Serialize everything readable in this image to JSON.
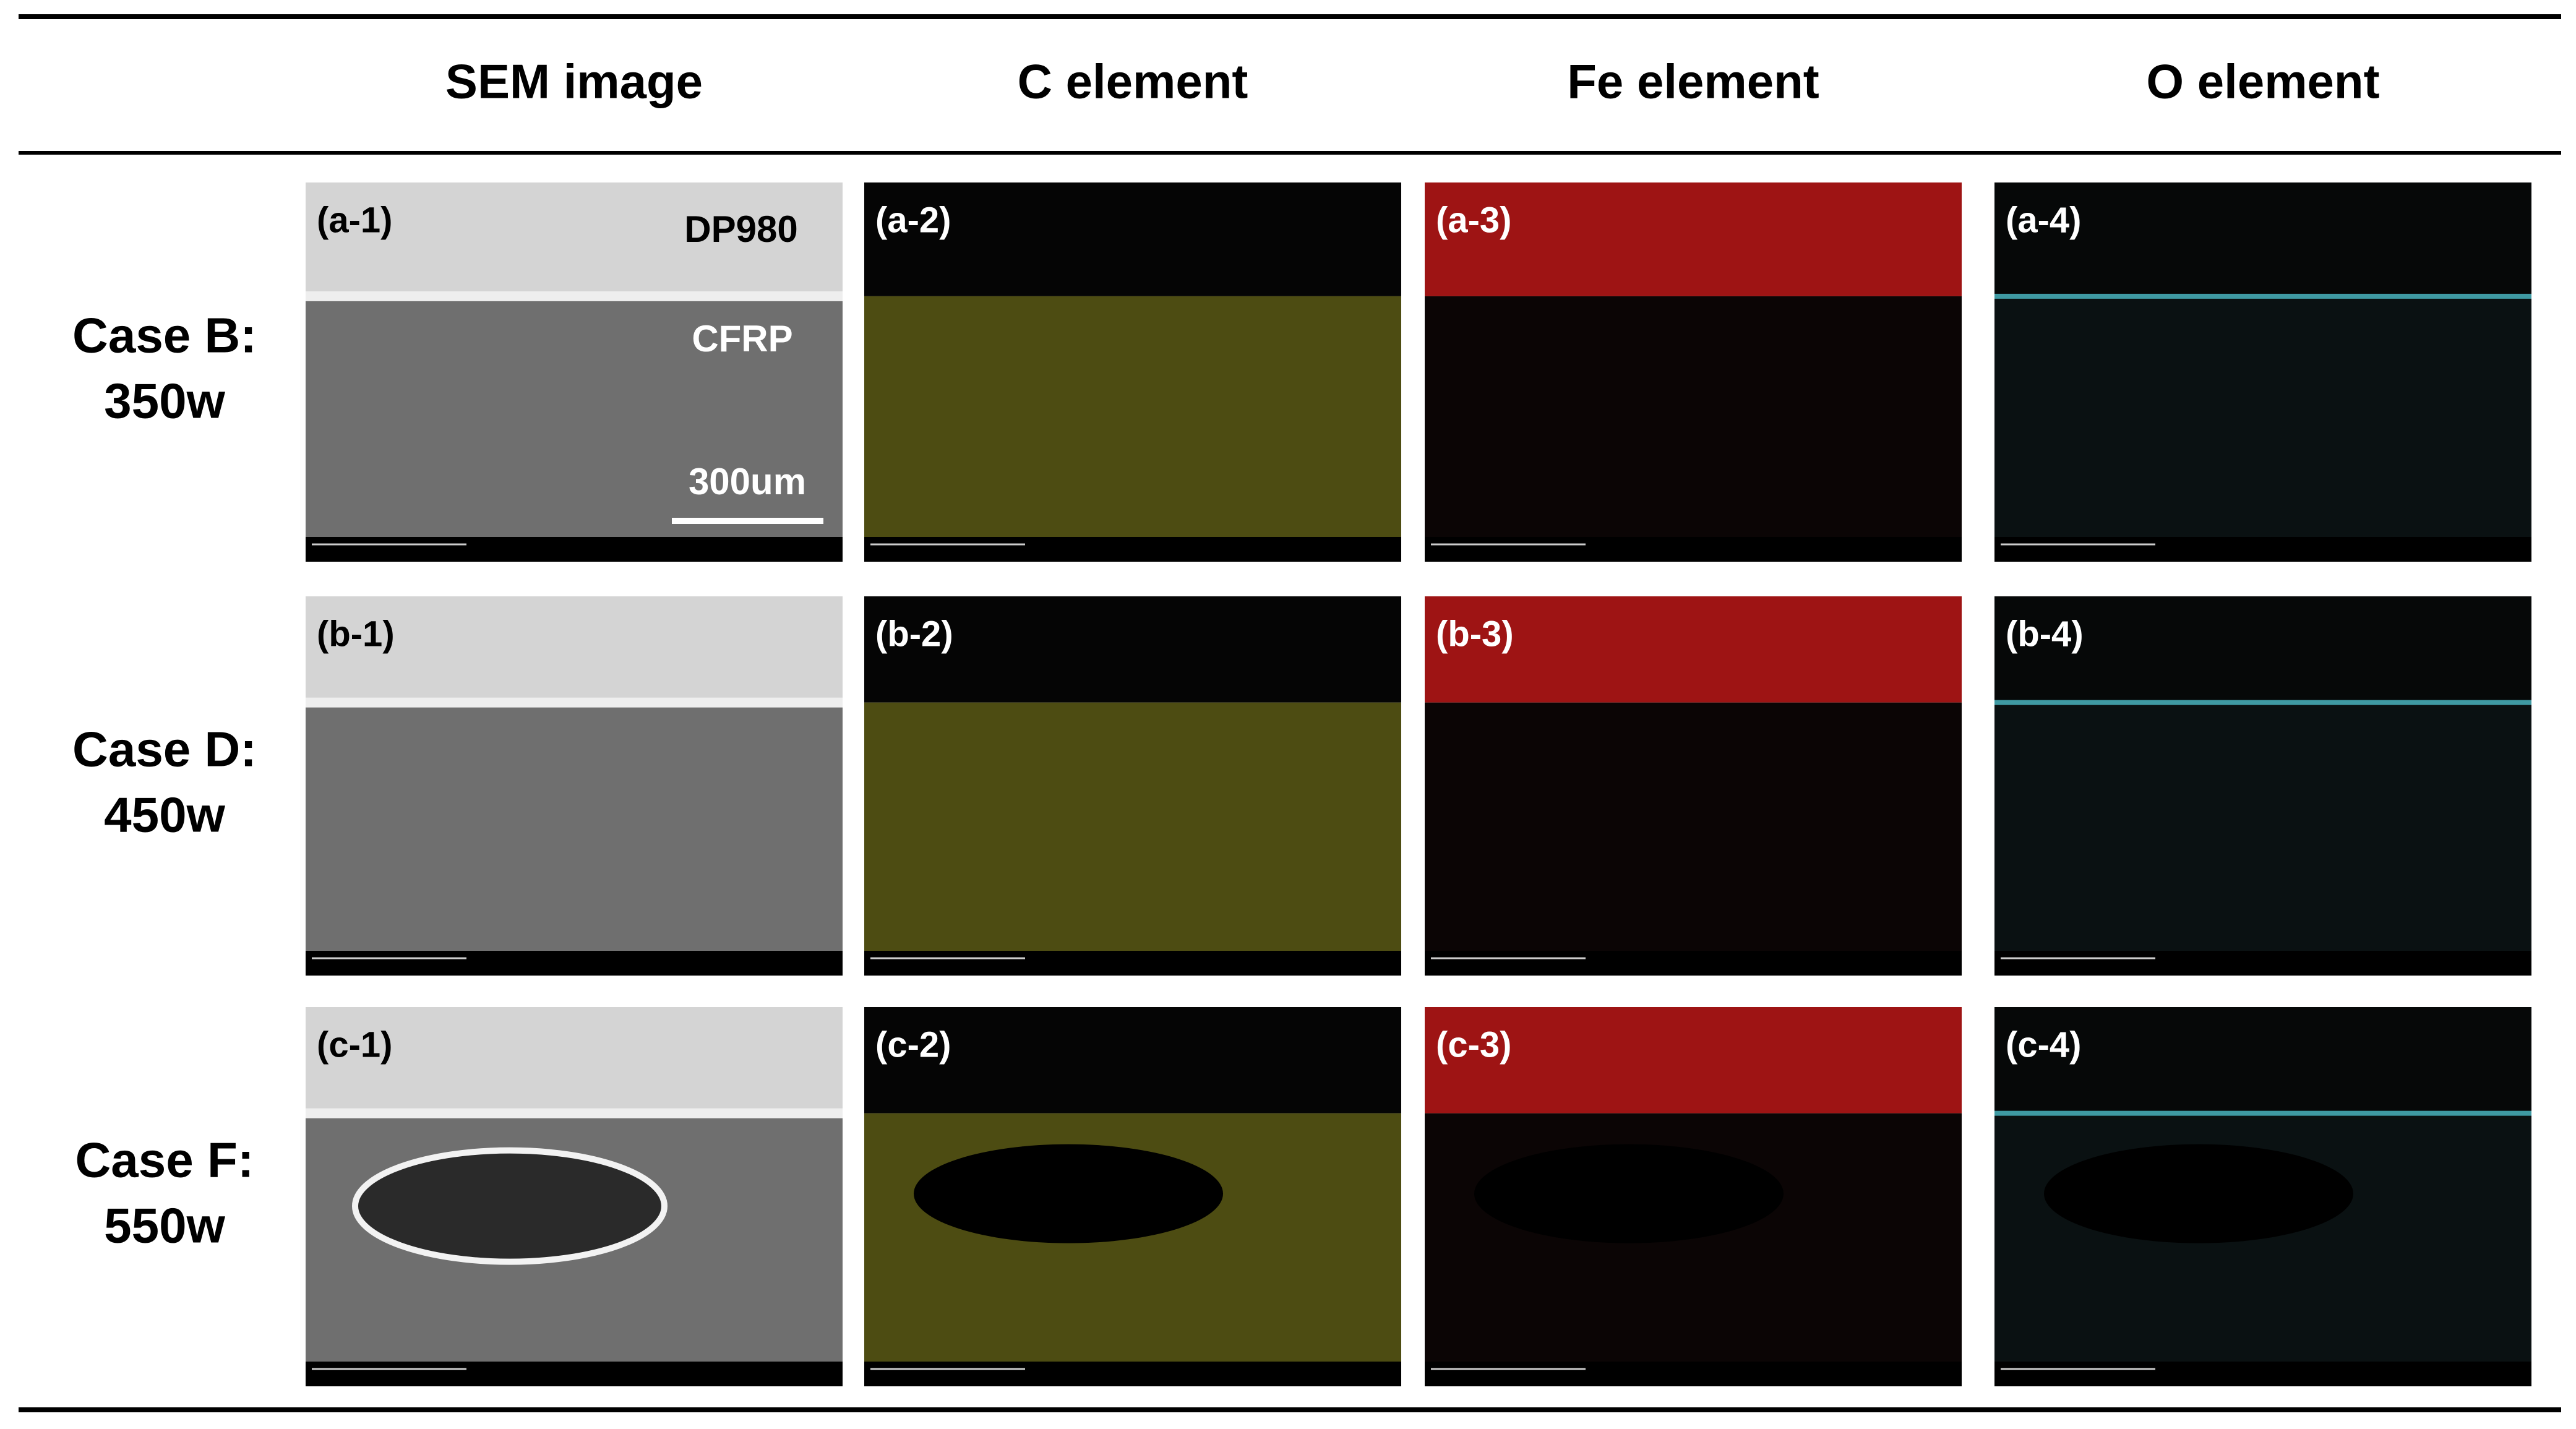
{
  "header": {
    "columns": [
      "SEM image",
      "C element",
      "Fe element",
      "O element"
    ]
  },
  "rows": [
    {
      "label": [
        "Case B:",
        "350w"
      ],
      "panels": [
        "(a-1)",
        "(a-2)",
        "(a-3)",
        "(a-4)"
      ]
    },
    {
      "label": [
        "Case D:",
        "450w"
      ],
      "panels": [
        "(b-1)",
        "(b-2)",
        "(b-3)",
        "(b-4)"
      ]
    },
    {
      "label": [
        "Case F:",
        "550w"
      ],
      "panels": [
        "(c-1)",
        "(c-2)",
        "(c-3)",
        "(c-4)"
      ]
    }
  ],
  "annotations": {
    "top_material": "DP980",
    "bottom_material": "CFRP",
    "scale_bar": "300um"
  }
}
